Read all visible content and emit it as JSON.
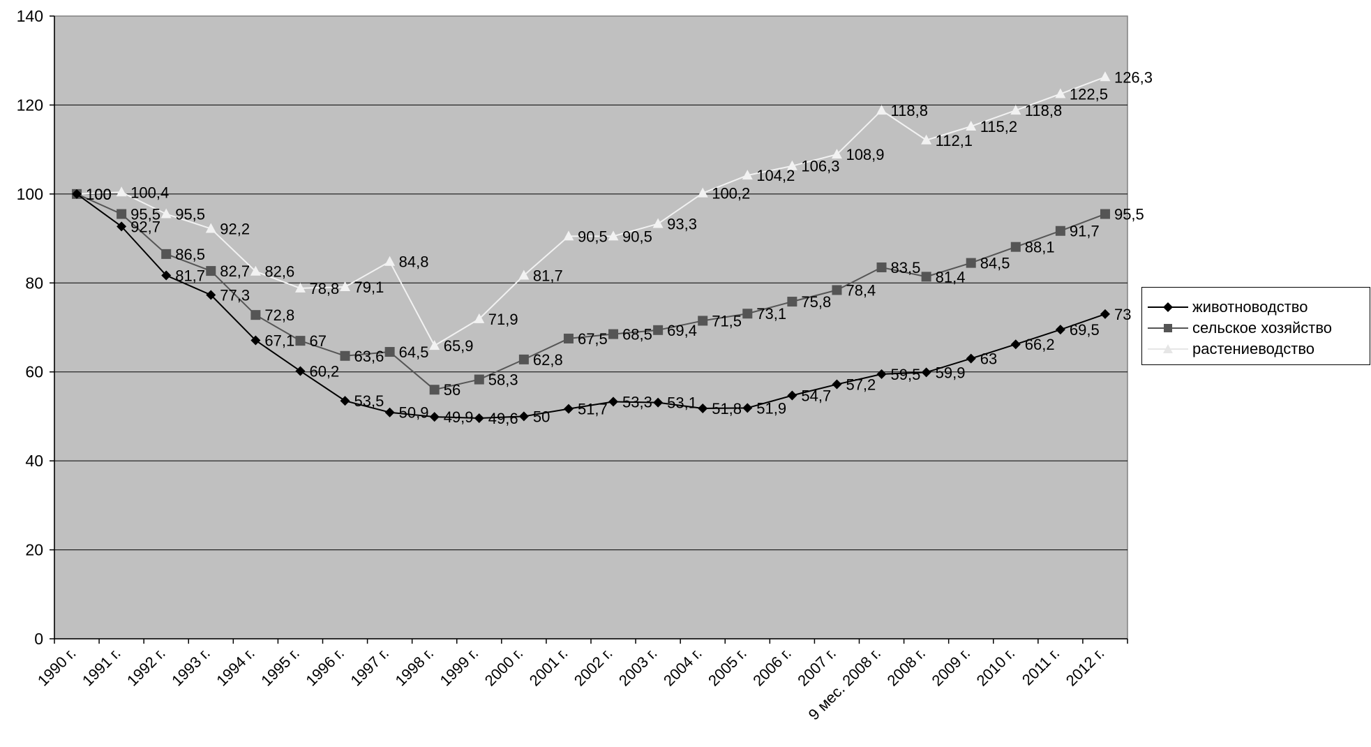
{
  "chart_data": {
    "type": "line",
    "categories": [
      "1990 г.",
      "1991 г.",
      "1992 г.",
      "1993 г.",
      "1994 г.",
      "1995 г.",
      "1996 г.",
      "1997 г.",
      "1998 г.",
      "1999 г.",
      "2000 г.",
      "2001 г.",
      "2002 г.",
      "2003 г.",
      "2004 г.",
      "2005 г.",
      "2006 г.",
      "2007 г.",
      "9 мес. 2008 г.",
      "2008 г.",
      "2009 г.",
      "2010 г.",
      "2011 г.",
      "2012 г."
    ],
    "yticks": [
      "0",
      "20",
      "40",
      "60",
      "80",
      "100",
      "120",
      "140"
    ],
    "ylim": [
      0,
      140
    ],
    "grid": true,
    "legend_position": "right",
    "series": [
      {
        "name": "животноводство",
        "color": "#000000",
        "marker": "diamond",
        "values": [
          100,
          92.7,
          81.7,
          77.3,
          67.1,
          60.2,
          53.5,
          50.9,
          49.9,
          49.6,
          50,
          51.7,
          53.3,
          53.1,
          51.8,
          51.9,
          54.7,
          57.2,
          59.5,
          59.9,
          63,
          66.2,
          69.5,
          73
        ],
        "labels": [
          "100",
          "92,7",
          "81,7",
          "77,3",
          "67,1",
          "60,2",
          "53,5",
          "50,9",
          "49,9",
          "49,6",
          "50",
          "51,7",
          "53,3",
          "53,1",
          "51,8",
          "51,9",
          "54,7",
          "57,2",
          "59,5",
          "59,9",
          "63",
          "66,2",
          "69,5",
          "73"
        ]
      },
      {
        "name": "сельское хозяйство",
        "color": "#555555",
        "marker": "square",
        "values": [
          100,
          95.5,
          86.5,
          82.7,
          72.8,
          67,
          63.6,
          64.5,
          56,
          58.3,
          62.8,
          67.5,
          68.5,
          69.4,
          71.5,
          73.1,
          75.8,
          78.4,
          83.5,
          81.4,
          84.5,
          88.1,
          91.7,
          95.5
        ],
        "labels": [
          "100",
          "95,5",
          "86,5",
          "82,7",
          "72,8",
          "67",
          "63,6",
          "64,5",
          "56",
          "58,3",
          "62,8",
          "67,5",
          "68,5",
          "69,4",
          "71,5",
          "73,1",
          "75,8",
          "78,4",
          "83,5",
          "81,4",
          "84,5",
          "88,1",
          "91,7",
          "95,5"
        ]
      },
      {
        "name": "растениеводство",
        "color": "#f2f2f2",
        "marker": "triangle",
        "values": [
          100,
          100.4,
          95.5,
          92.2,
          82.6,
          78.8,
          79.1,
          84.8,
          65.9,
          71.9,
          81.7,
          90.5,
          90.5,
          93.3,
          100.2,
          104.2,
          106.3,
          108.9,
          118.8,
          112.1,
          115.2,
          118.8,
          122.5,
          126.3
        ],
        "labels": [
          "100",
          "100,4",
          "95,5",
          "92,2",
          "82,6",
          "78,8",
          "79,1",
          "84,8",
          "65,9",
          "71,9",
          "81,7",
          "90,5",
          "90,5",
          "93,3",
          "100,2",
          "104,2",
          "106,3",
          "108,9",
          "118,8",
          "112,1",
          "115,2",
          "118,8",
          "122,5",
          "126,3"
        ]
      }
    ]
  }
}
